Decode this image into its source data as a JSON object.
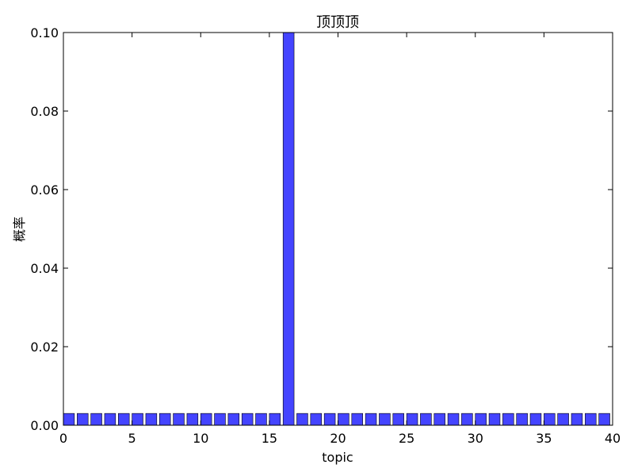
{
  "chart_data": {
    "type": "bar",
    "title": "顶顶顶",
    "xlabel": "topic",
    "ylabel": "概率",
    "xlim": [
      0,
      40
    ],
    "ylim": [
      0,
      0.1
    ],
    "xticks": [
      "0",
      "5",
      "10",
      "15",
      "20",
      "25",
      "30",
      "35",
      "40"
    ],
    "yticks": [
      "0.00",
      "0.02",
      "0.04",
      "0.06",
      "0.08",
      "0.10"
    ],
    "grid": false,
    "bar_color": "#4444ff",
    "bar_edge_color": "#000000",
    "x": [
      0,
      1,
      2,
      3,
      4,
      5,
      6,
      7,
      8,
      9,
      10,
      11,
      12,
      13,
      14,
      15,
      16,
      17,
      18,
      19,
      20,
      21,
      22,
      23,
      24,
      25,
      26,
      27,
      28,
      29,
      30,
      31,
      32,
      33,
      34,
      35,
      36,
      37,
      38,
      39
    ],
    "values": [
      0.003,
      0.003,
      0.003,
      0.003,
      0.003,
      0.003,
      0.003,
      0.003,
      0.003,
      0.003,
      0.003,
      0.003,
      0.003,
      0.003,
      0.003,
      0.003,
      0.1,
      0.003,
      0.003,
      0.003,
      0.003,
      0.003,
      0.003,
      0.003,
      0.003,
      0.003,
      0.003,
      0.003,
      0.003,
      0.003,
      0.003,
      0.003,
      0.003,
      0.003,
      0.003,
      0.003,
      0.003,
      0.003,
      0.003,
      0.003
    ]
  }
}
